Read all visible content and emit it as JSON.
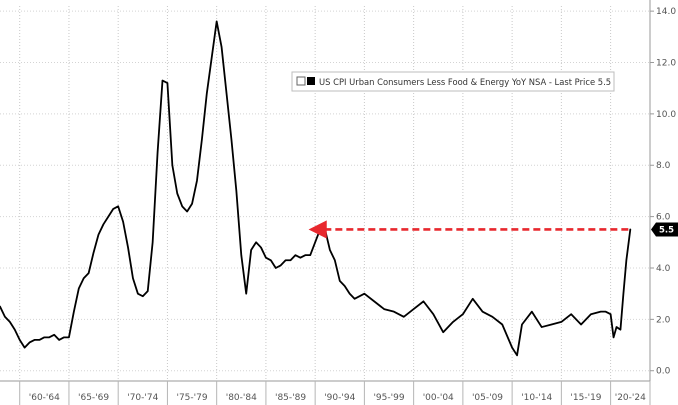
{
  "chart_data": {
    "type": "line",
    "title": "",
    "xlabel": "",
    "ylabel": "",
    "categories": [
      "'60-'64",
      "'65-'69",
      "'70-'74",
      "'75-'79",
      "'80-'84",
      "'85-'89",
      "'90-'94",
      "'95-'99",
      "'00-'04",
      "'05-'09",
      "'10-'14",
      "'15-'19",
      "'20-'24"
    ],
    "xlim": [
      1958,
      2024
    ],
    "ylim": [
      -0.4,
      14.2
    ],
    "yticks": [
      0.0,
      2.0,
      4.0,
      6.0,
      8.0,
      10.0,
      12.0,
      14.0
    ],
    "ytick_labels": [
      "0.0",
      "2.0",
      "4.0",
      "6.0",
      "8.0",
      "10.0",
      "12.0",
      "14.0"
    ],
    "y_axis_side": "right",
    "grid": true,
    "legend": {
      "position": "top-right",
      "text": "US CPI Urban Consumers Less Food & Energy YoY NSA - Last Price 5.5"
    },
    "last_price_label": "5.5",
    "series": [
      {
        "name": "US CPI Urban Consumers Less Food & Energy YoY NSA",
        "color": "#000000",
        "x": [
          1958.0,
          1958.5,
          1959.0,
          1959.5,
          1960.0,
          1960.5,
          1961.0,
          1961.5,
          1962.0,
          1962.5,
          1963.0,
          1963.5,
          1964.0,
          1964.5,
          1965.0,
          1965.5,
          1966.0,
          1966.5,
          1967.0,
          1967.5,
          1968.0,
          1968.5,
          1969.0,
          1969.5,
          1970.0,
          1970.5,
          1971.0,
          1971.5,
          1972.0,
          1972.5,
          1973.0,
          1973.5,
          1974.0,
          1974.5,
          1975.0,
          1975.5,
          1976.0,
          1976.5,
          1977.0,
          1977.5,
          1978.0,
          1978.5,
          1979.0,
          1979.5,
          1980.0,
          1980.5,
          1981.0,
          1981.5,
          1982.0,
          1982.5,
          1983.0,
          1983.5,
          1984.0,
          1984.5,
          1985.0,
          1985.5,
          1986.0,
          1986.5,
          1987.0,
          1987.5,
          1988.0,
          1988.5,
          1989.0,
          1989.5,
          1990.0,
          1990.5,
          1991.0,
          1991.5,
          1992.0,
          1992.5,
          1993.0,
          1993.5,
          1994.0,
          1995.0,
          1996.0,
          1997.0,
          1998.0,
          1999.0,
          2000.0,
          2001.0,
          2002.0,
          2003.0,
          2004.0,
          2005.0,
          2006.0,
          2007.0,
          2008.0,
          2009.0,
          2010.0,
          2010.5,
          2011.0,
          2012.0,
          2013.0,
          2014.0,
          2015.0,
          2016.0,
          2017.0,
          2018.0,
          2019.0,
          2019.5,
          2020.0,
          2020.3,
          2020.6,
          2021.0,
          2021.3,
          2021.6,
          2022.0
        ],
        "y": [
          2.5,
          2.1,
          1.9,
          1.6,
          1.2,
          0.9,
          1.1,
          1.2,
          1.2,
          1.3,
          1.3,
          1.4,
          1.2,
          1.3,
          1.3,
          2.3,
          3.2,
          3.6,
          3.8,
          4.6,
          5.3,
          5.7,
          6.0,
          6.3,
          6.4,
          5.8,
          4.8,
          3.6,
          3.0,
          2.9,
          3.1,
          5.0,
          8.5,
          11.3,
          11.2,
          8.0,
          6.9,
          6.4,
          6.2,
          6.5,
          7.4,
          9.0,
          10.8,
          12.2,
          13.6,
          12.6,
          10.8,
          9.0,
          7.0,
          4.5,
          3.0,
          4.7,
          5.0,
          4.8,
          4.4,
          4.3,
          4.0,
          4.1,
          4.3,
          4.3,
          4.5,
          4.4,
          4.5,
          4.5,
          5.0,
          5.5,
          5.5,
          4.7,
          4.3,
          3.5,
          3.3,
          3.0,
          2.8,
          3.0,
          2.7,
          2.4,
          2.3,
          2.1,
          2.4,
          2.7,
          2.2,
          1.5,
          1.9,
          2.2,
          2.8,
          2.3,
          2.1,
          1.8,
          0.9,
          0.6,
          1.8,
          2.3,
          1.7,
          1.8,
          1.9,
          2.2,
          1.8,
          2.2,
          2.3,
          2.3,
          2.2,
          1.3,
          1.7,
          1.6,
          3.0,
          4.3,
          5.5
        ],
        "stroke_width": 1.8
      }
    ],
    "reference_line": {
      "type": "horizontal-arrow",
      "y": 5.5,
      "x_from": 2021.8,
      "x_to": 1990.2,
      "color": "#e8282e",
      "style": "dashed"
    }
  }
}
